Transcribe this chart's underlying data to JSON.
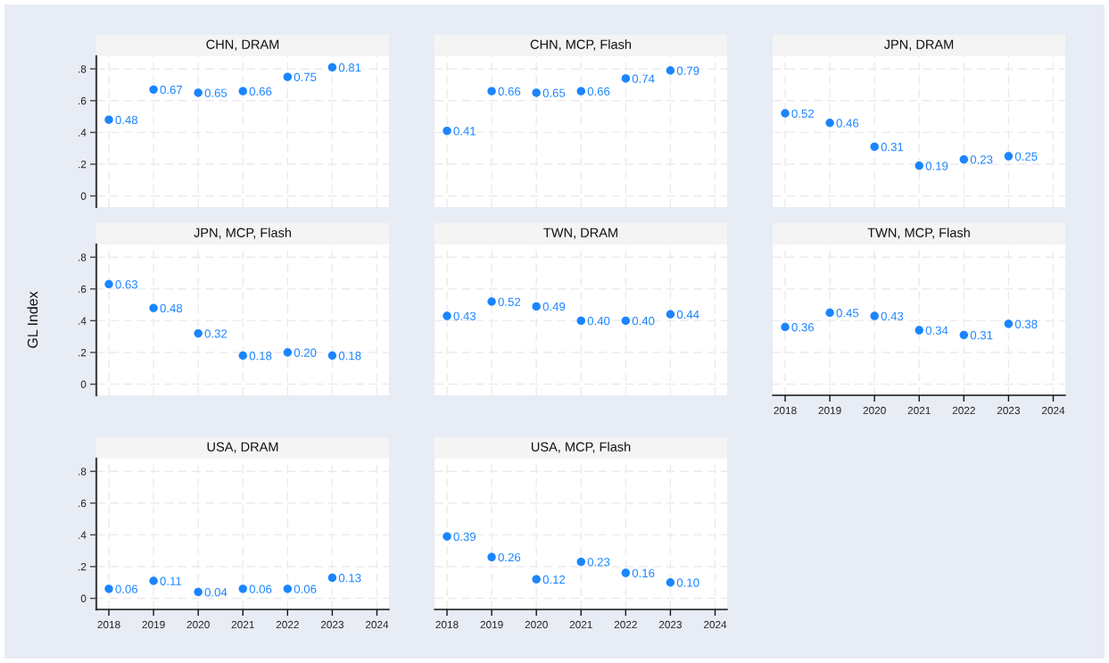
{
  "chart_data": [
    {
      "type": "scatter",
      "title": "CHN, DRAM",
      "x": [
        2018,
        2019,
        2020,
        2021,
        2022,
        2023
      ],
      "values": [
        0.48,
        0.67,
        0.65,
        0.66,
        0.75,
        0.81
      ],
      "value_labels": [
        "0.48",
        "0.67",
        "0.65",
        "0.66",
        "0.75",
        "0.81"
      ],
      "color": "#1a85ff",
      "marker": "circle",
      "xlim": [
        2017.72,
        2024.27
      ],
      "ylim": [
        -0.07,
        0.88
      ],
      "xticks": [
        2018,
        2019,
        2020,
        2021,
        2022,
        2023,
        2024
      ],
      "yticks": [
        0,
        {
          "value": 0.2,
          "label": ".2"
        },
        {
          "value": 0.4,
          "label": ".4"
        },
        {
          "value": 0.6,
          "label": ".6"
        },
        {
          "value": 0.8,
          "label": ".8"
        }
      ],
      "grid": true,
      "tick_labels": "y"
    },
    {
      "type": "scatter",
      "title": "CHN, MCP, Flash",
      "x": [
        2018,
        2019,
        2020,
        2021,
        2022,
        2023
      ],
      "values": [
        0.41,
        0.66,
        0.65,
        0.66,
        0.74,
        0.79
      ],
      "value_labels": [
        "0.41",
        "0.66",
        "0.65",
        "0.66",
        "0.74",
        "0.79"
      ],
      "color": "#1a85ff",
      "marker": "circle",
      "xlim": [
        2017.72,
        2024.27
      ],
      "ylim": [
        -0.07,
        0.88
      ],
      "xticks": [
        2018,
        2019,
        2020,
        2021,
        2022,
        2023,
        2024
      ],
      "yticks": [
        0,
        0.2,
        0.4,
        0.6,
        0.8
      ],
      "grid": true,
      "tick_labels": false
    },
    {
      "type": "scatter",
      "title": "JPN, DRAM",
      "x": [
        2018,
        2019,
        2020,
        2021,
        2022,
        2023
      ],
      "values": [
        0.52,
        0.46,
        0.31,
        0.19,
        0.23,
        0.25
      ],
      "value_labels": [
        "0.52",
        "0.46",
        "0.31",
        "0.19",
        "0.23",
        "0.25"
      ],
      "color": "#1a85ff",
      "marker": "circle",
      "xlim": [
        2017.72,
        2024.27
      ],
      "ylim": [
        -0.07,
        0.88
      ],
      "xticks": [
        2018,
        2019,
        2020,
        2021,
        2022,
        2023,
        2024
      ],
      "yticks": [
        0,
        0.2,
        0.4,
        0.6,
        0.8
      ],
      "grid": true,
      "tick_labels": false
    },
    {
      "type": "scatter",
      "title": "JPN, MCP, Flash",
      "ylabel": "GL Index",
      "x": [
        2018,
        2019,
        2020,
        2021,
        2022,
        2023
      ],
      "values": [
        0.63,
        0.48,
        0.32,
        0.18,
        0.2,
        0.18
      ],
      "value_labels": [
        "0.63",
        "0.48",
        "0.32",
        "0.18",
        "0.20",
        "0.18"
      ],
      "color": "#1a85ff",
      "marker": "circle",
      "xlim": [
        2017.72,
        2024.27
      ],
      "ylim": [
        -0.07,
        0.88
      ],
      "xticks": [
        2018,
        2019,
        2020,
        2021,
        2022,
        2023,
        2024
      ],
      "yticks": [
        0,
        {
          "value": 0.2,
          "label": ".2"
        },
        {
          "value": 0.4,
          "label": ".4"
        },
        {
          "value": 0.6,
          "label": ".6"
        },
        {
          "value": 0.8,
          "label": ".8"
        }
      ],
      "grid": true,
      "tick_labels": "y"
    },
    {
      "type": "scatter",
      "title": "TWN, DRAM",
      "x": [
        2018,
        2019,
        2020,
        2021,
        2022,
        2023
      ],
      "values": [
        0.43,
        0.52,
        0.49,
        0.4,
        0.4,
        0.44
      ],
      "value_labels": [
        "0.43",
        "0.52",
        "0.49",
        "0.40",
        "0.40",
        "0.44"
      ],
      "color": "#1a85ff",
      "marker": "circle",
      "xlim": [
        2017.72,
        2024.27
      ],
      "ylim": [
        -0.07,
        0.88
      ],
      "xticks": [
        2018,
        2019,
        2020,
        2021,
        2022,
        2023,
        2024
      ],
      "yticks": [
        0,
        0.2,
        0.4,
        0.6,
        0.8
      ],
      "grid": true,
      "tick_labels": false
    },
    {
      "type": "scatter",
      "title": "TWN, MCP, Flash",
      "x": [
        2018,
        2019,
        2020,
        2021,
        2022,
        2023
      ],
      "values": [
        0.36,
        0.45,
        0.43,
        0.34,
        0.31,
        0.38
      ],
      "value_labels": [
        "0.36",
        "0.45",
        "0.43",
        "0.34",
        "0.31",
        "0.38"
      ],
      "color": "#1a85ff",
      "marker": "circle",
      "xlim": [
        2017.72,
        2024.27
      ],
      "ylim": [
        -0.07,
        0.88
      ],
      "xticks": [
        2018,
        2019,
        2020,
        2021,
        2022,
        2023,
        2024
      ],
      "yticks": [
        0,
        0.2,
        0.4,
        0.6,
        0.8
      ],
      "grid": true,
      "tick_labels": "x"
    },
    {
      "type": "scatter",
      "title": "USA, DRAM",
      "x": [
        2018,
        2019,
        2020,
        2021,
        2022,
        2023
      ],
      "values": [
        0.06,
        0.11,
        0.04,
        0.06,
        0.06,
        0.13
      ],
      "value_labels": [
        "0.06",
        "0.11",
        "0.04",
        "0.06",
        "0.06",
        "0.13"
      ],
      "color": "#1a85ff",
      "marker": "circle",
      "xlim": [
        2017.72,
        2024.27
      ],
      "ylim": [
        -0.07,
        0.88
      ],
      "xticks": [
        2018,
        2019,
        2020,
        2021,
        2022,
        2023,
        2024
      ],
      "yticks": [
        0,
        {
          "value": 0.2,
          "label": ".2"
        },
        {
          "value": 0.4,
          "label": ".4"
        },
        {
          "value": 0.6,
          "label": ".6"
        },
        {
          "value": 0.8,
          "label": ".8"
        }
      ],
      "grid": true
    },
    {
      "type": "scatter",
      "title": "USA, MCP, Flash",
      "x": [
        2018,
        2019,
        2020,
        2021,
        2022,
        2023
      ],
      "values": [
        0.39,
        0.26,
        0.12,
        0.23,
        0.16,
        0.1
      ],
      "value_labels": [
        "0.39",
        "0.26",
        "0.12",
        "0.23",
        "0.16",
        "0.10"
      ],
      "color": "#1a85ff",
      "marker": "circle",
      "xlim": [
        2017.72,
        2024.27
      ],
      "ylim": [
        -0.07,
        0.88
      ],
      "xticks": [
        2018,
        2019,
        2020,
        2021,
        2022,
        2023,
        2024
      ],
      "yticks": [
        0,
        0.2,
        0.4,
        0.6,
        0.8
      ],
      "grid": true,
      "tick_labels": "x"
    }
  ]
}
